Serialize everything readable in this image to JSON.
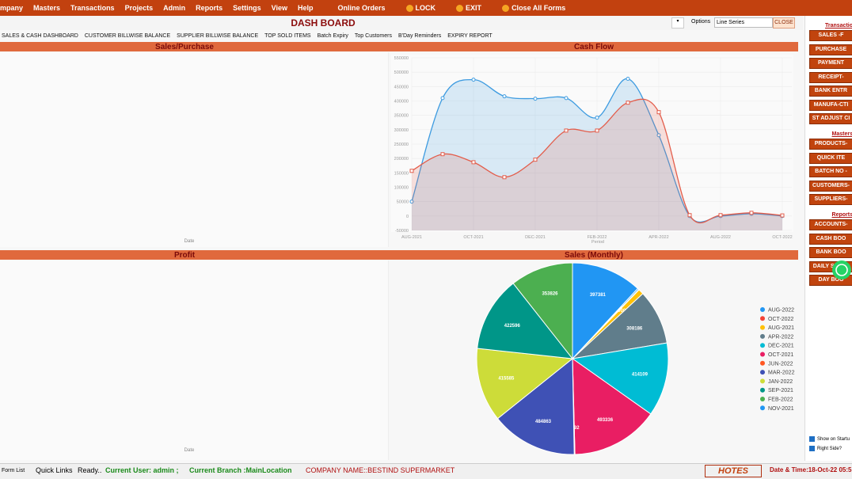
{
  "menu": [
    "mpany",
    "Masters",
    "Transactions",
    "Projects",
    "Admin",
    "Reports",
    "Settings",
    "View",
    "Help"
  ],
  "menu_right": [
    "Online Orders",
    "LOCK",
    "EXIT",
    "Close All Forms"
  ],
  "header": {
    "title": "DASH BOARD",
    "options_label": "Options",
    "series_select": "Line Series",
    "close": "CLOSE"
  },
  "tabs": [
    "SALES & CASH DASHBOARD",
    "CUSTOMER BILLWISE BALANCE",
    "SUPPLIER BILLWISE BALANCE",
    "TOP SOLD ITEMS",
    "Batch Expiry",
    "Top Customers",
    "B'Day Reminders",
    "EXPIRY REPORT"
  ],
  "panels": {
    "sales_purchase": {
      "title": "Sales/Purchase",
      "x_label": "Date"
    },
    "profit": {
      "title": "Profit",
      "x_label": "Date"
    }
  },
  "chart_data": [
    {
      "type": "line",
      "title": "Cash Flow",
      "x_label": "Period",
      "categories": [
        "AUG-2021",
        null,
        "OCT-2021",
        null,
        "DEC-2021",
        null,
        "FEB-2022",
        null,
        "APR-2022",
        null,
        "AUG-2022",
        null,
        "OCT-2022"
      ],
      "series": [
        {
          "color": "#3d9be0",
          "values": [
            50000,
            410000,
            474000,
            416000,
            408000,
            410000,
            342000,
            477000,
            281000,
            0,
            0,
            8000,
            0
          ]
        },
        {
          "color": "#e35d4b",
          "values": [
            157000,
            215000,
            187000,
            135000,
            196000,
            297000,
            297000,
            394000,
            361000,
            3000,
            3000,
            11000,
            2000
          ]
        }
      ],
      "ylim": [
        -50000,
        550000
      ],
      "yticks": [
        -50000,
        0,
        50000,
        100000,
        150000,
        200000,
        250000,
        300000,
        350000,
        400000,
        450000,
        500000,
        550000
      ],
      "grid": true,
      "area": true
    },
    {
      "type": "pie",
      "title": "Sales (Monthly)",
      "categories": [
        "AUG-2022",
        "OCT-2022",
        "AUG-2021",
        "APR-2022",
        "DEC-2021",
        "OCT-2021",
        "JUN-2022",
        "MAR-2022",
        "JAN-2022",
        "SEP-2021",
        "FEB-2022",
        "NOV-2021"
      ],
      "values": [
        8000,
        2500,
        30000,
        308186,
        414109,
        493336,
        3992,
        484863,
        415585,
        422596,
        353826,
        397381
      ],
      "colors": [
        "#2196f3",
        "#f44336",
        "#ffc107",
        "#607d8b",
        "#00bcd4",
        "#e91e63",
        "#ff5722",
        "#3f51b5",
        "#cddc39",
        "#009688",
        "#4caf50",
        "#2196f3"
      ],
      "legend": "right"
    }
  ],
  "sidebar": {
    "sections": [
      {
        "title": "Transactio",
        "buttons": [
          "SALES -F",
          "PURCHASE",
          "PAYMENT",
          "RECEIPT-",
          "BANK ENTR",
          "MANUFA-CTI",
          "ST ADJUST CI"
        ]
      },
      {
        "title": "Masters",
        "buttons": [
          "PRODUCTS-",
          "QUICK ITE",
          "BATCH NO -",
          "CUSTOMERS-",
          "SUPPLIERS-"
        ]
      },
      {
        "title": "Reports",
        "buttons": [
          "ACCOUNTS-",
          "CASH BOO",
          "BANK BOO",
          "DAILY SALES",
          "DAY BOO"
        ]
      }
    ],
    "checkboxes": [
      "Show on Startu",
      "Right Side?"
    ]
  },
  "status_bar": {
    "form_list": "Form List",
    "quick_links": "Quick Links",
    "ready": "Ready..",
    "user": "Current User: admin ;",
    "branch": "Current Branch :MainLocation",
    "company": "COMPANY NAME::BESTIND SUPERMARKET",
    "logo": "HOTES",
    "datetime": "Date & Time:18-Oct-22 05:5"
  }
}
